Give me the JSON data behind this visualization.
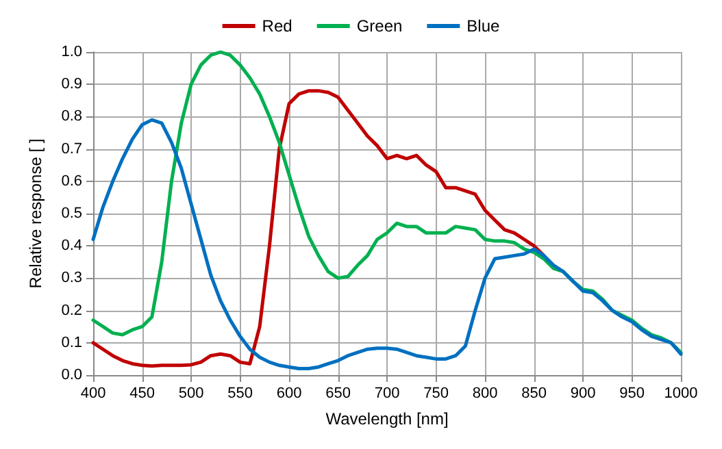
{
  "chart_data": {
    "type": "line",
    "xlabel": "Wavelength [nm]",
    "ylabel": "Relative response [ ]",
    "x": [
      400,
      410,
      420,
      430,
      440,
      450,
      460,
      470,
      480,
      490,
      500,
      510,
      520,
      530,
      540,
      550,
      560,
      570,
      580,
      590,
      600,
      610,
      620,
      630,
      640,
      650,
      660,
      670,
      680,
      690,
      700,
      710,
      720,
      730,
      740,
      750,
      760,
      770,
      780,
      790,
      800,
      810,
      820,
      830,
      840,
      850,
      860,
      870,
      880,
      890,
      900,
      910,
      920,
      930,
      940,
      950,
      960,
      970,
      980,
      990,
      1000
    ],
    "series": [
      {
        "name": "Red",
        "color": "#c00000",
        "values": [
          0.1,
          0.08,
          0.06,
          0.045,
          0.035,
          0.03,
          0.028,
          0.03,
          0.03,
          0.03,
          0.032,
          0.04,
          0.06,
          0.065,
          0.06,
          0.04,
          0.035,
          0.15,
          0.4,
          0.7,
          0.84,
          0.87,
          0.88,
          0.88,
          0.875,
          0.86,
          0.82,
          0.78,
          0.74,
          0.71,
          0.67,
          0.68,
          0.67,
          0.68,
          0.65,
          0.63,
          0.58,
          0.58,
          0.57,
          0.56,
          0.51,
          0.48,
          0.45,
          0.44,
          0.42,
          0.4,
          0.37,
          null,
          null,
          null,
          null,
          null,
          null,
          null,
          null,
          null,
          null,
          null,
          null,
          null,
          null
        ]
      },
      {
        "name": "Green",
        "color": "#00b050",
        "values": [
          0.17,
          0.15,
          0.13,
          0.125,
          0.14,
          0.15,
          0.18,
          0.35,
          0.6,
          0.78,
          0.9,
          0.96,
          0.99,
          1.0,
          0.99,
          0.96,
          0.92,
          0.87,
          0.8,
          0.72,
          0.62,
          0.52,
          0.43,
          0.37,
          0.32,
          0.3,
          0.305,
          0.34,
          0.37,
          0.42,
          0.44,
          0.47,
          0.46,
          0.46,
          0.44,
          0.44,
          0.44,
          0.46,
          0.455,
          0.45,
          0.42,
          0.415,
          0.415,
          0.41,
          0.39,
          0.38,
          0.36,
          0.33,
          0.32,
          0.29,
          0.265,
          0.26,
          0.235,
          0.2,
          0.185,
          0.17,
          0.145,
          0.125,
          0.115,
          0.1,
          0.07
        ]
      },
      {
        "name": "Blue",
        "color": "#0070c0",
        "values": [
          0.42,
          0.52,
          0.6,
          0.67,
          0.73,
          0.775,
          0.79,
          0.78,
          0.72,
          0.64,
          0.53,
          0.42,
          0.31,
          0.23,
          0.17,
          0.12,
          0.08,
          0.055,
          0.04,
          0.03,
          0.025,
          0.02,
          0.02,
          0.025,
          0.035,
          0.045,
          0.06,
          0.07,
          0.08,
          0.083,
          0.083,
          0.08,
          0.07,
          0.06,
          0.055,
          0.05,
          0.05,
          0.06,
          0.09,
          0.2,
          0.3,
          0.36,
          0.365,
          0.37,
          0.375,
          0.39,
          0.37,
          0.34,
          0.32,
          0.29,
          0.26,
          0.255,
          0.23,
          0.2,
          0.18,
          0.165,
          0.14,
          0.12,
          0.11,
          0.1,
          0.065
        ]
      }
    ],
    "xlim": [
      400,
      1000
    ],
    "xticks": [
      400,
      450,
      500,
      550,
      600,
      650,
      700,
      750,
      800,
      850,
      900,
      950,
      1000
    ],
    "ylim": [
      0,
      1
    ],
    "yticks": [
      {
        "value": 0,
        "label": "0.0"
      },
      {
        "value": 0.1,
        "label": "0.1"
      },
      {
        "value": 0.2,
        "label": "0.2"
      },
      {
        "value": 0.3,
        "label": "0.3"
      },
      {
        "value": 0.4,
        "label": "0.4"
      },
      {
        "value": 0.5,
        "label": "0.5"
      },
      {
        "value": 0.6,
        "label": "0.6"
      },
      {
        "value": 0.7,
        "label": "0.7"
      },
      {
        "value": 0.8,
        "label": "0.8"
      },
      {
        "value": 0.9,
        "label": "0.9"
      },
      {
        "value": 1,
        "label": "1.0"
      }
    ],
    "grid": true,
    "legend": "top",
    "marker": "none",
    "line_style": "solid"
  }
}
